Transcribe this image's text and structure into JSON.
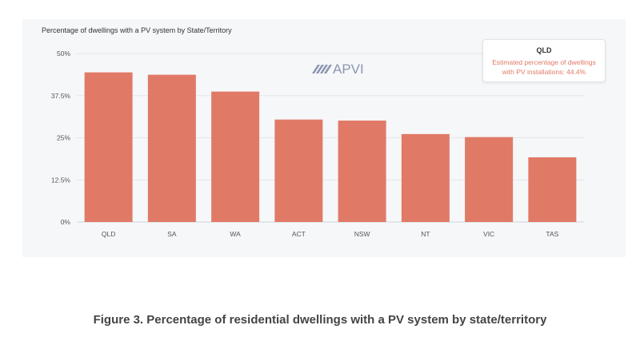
{
  "chart_data": {
    "type": "bar",
    "title": "Percentage of dwellings with a PV system by State/Territory",
    "categories": [
      "QLD",
      "SA",
      "WA",
      "ACT",
      "NSW",
      "NT",
      "VIC",
      "TAS"
    ],
    "values": [
      44.4,
      43.7,
      38.7,
      30.4,
      30.1,
      26.1,
      25.2,
      19.2
    ],
    "ylim": [
      0,
      50
    ],
    "yticks": [
      0,
      12.5,
      25,
      37.5,
      50
    ],
    "ytick_labels": [
      "0%",
      "12.5%",
      "25%",
      "37.5%",
      "50%"
    ],
    "grid": "horizontal",
    "bar_color": "#e07a66",
    "watermark": "APVI",
    "tooltip": {
      "title": "QLD",
      "line1": "Estimated percentage of dwellings",
      "line2": "with PV installations: 44.4%"
    }
  },
  "caption": "Figure 3. Percentage of residential dwellings with a PV system by state/territory"
}
